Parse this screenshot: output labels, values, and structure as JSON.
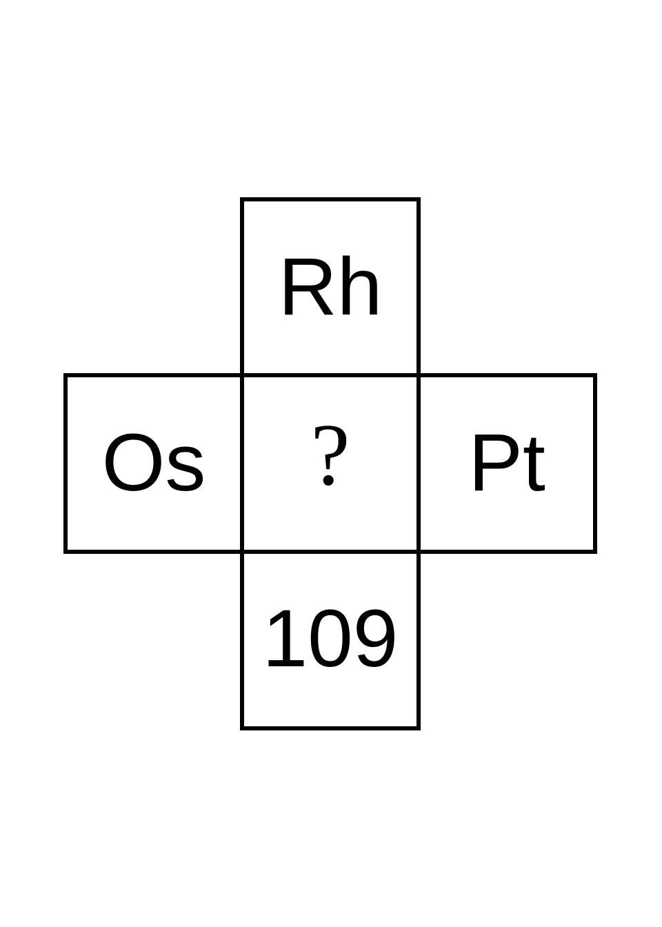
{
  "puzzle": {
    "top": "Rh",
    "left": "Os",
    "center": "?",
    "right": "Pt",
    "bottom": "109"
  },
  "colors": {
    "border": "#000000",
    "text": "#000000",
    "background": "#ffffff"
  }
}
